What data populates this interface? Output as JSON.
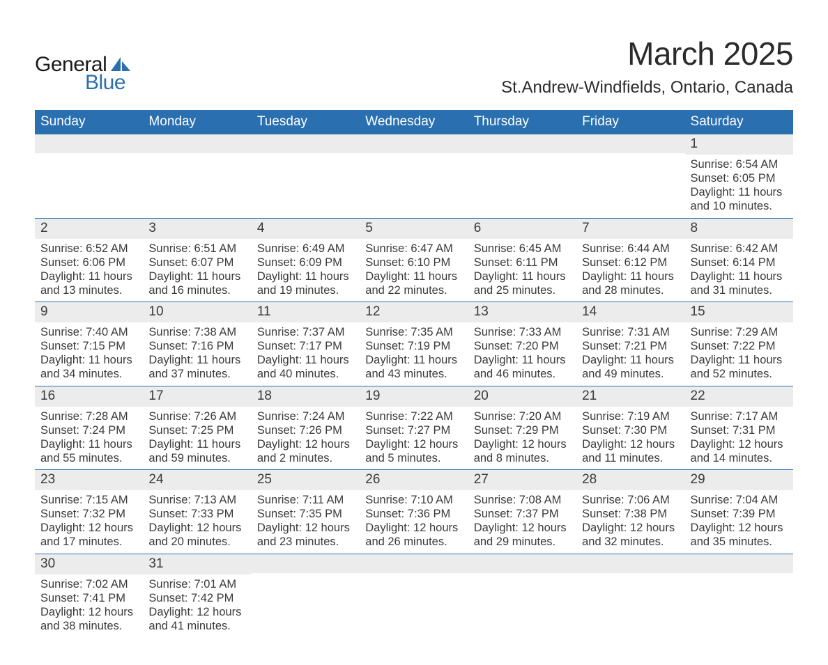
{
  "brand": {
    "text_general": "General",
    "text_blue": "Blue",
    "shape_color": "#2a6fb0"
  },
  "title": "March 2025",
  "location": "St.Andrew-Windfields, Ontario, Canada",
  "colors": {
    "header_bg": "#2a6fb0",
    "header_text": "#ffffff",
    "daynum_bg": "#ececec",
    "body_text": "#3a3a3a",
    "page_bg": "#ffffff",
    "row_divider": "#2a6fb0"
  },
  "typography": {
    "title_fontsize": 46,
    "location_fontsize": 24,
    "header_fontsize": 19,
    "daynum_fontsize": 19,
    "cell_fontsize": 16.5,
    "logo_fontsize": 30
  },
  "day_headers": [
    "Sunday",
    "Monday",
    "Tuesday",
    "Wednesday",
    "Thursday",
    "Friday",
    "Saturday"
  ],
  "field_labels": {
    "sunrise": "Sunrise:",
    "sunset": "Sunset:",
    "daylight": "Daylight:"
  },
  "weeks": [
    [
      null,
      null,
      null,
      null,
      null,
      null,
      {
        "n": "1",
        "sunrise": "6:54 AM",
        "sunset": "6:05 PM",
        "daylight_l1": "11 hours",
        "daylight_l2": "and 10 minutes."
      }
    ],
    [
      {
        "n": "2",
        "sunrise": "6:52 AM",
        "sunset": "6:06 PM",
        "daylight_l1": "11 hours",
        "daylight_l2": "and 13 minutes."
      },
      {
        "n": "3",
        "sunrise": "6:51 AM",
        "sunset": "6:07 PM",
        "daylight_l1": "11 hours",
        "daylight_l2": "and 16 minutes."
      },
      {
        "n": "4",
        "sunrise": "6:49 AM",
        "sunset": "6:09 PM",
        "daylight_l1": "11 hours",
        "daylight_l2": "and 19 minutes."
      },
      {
        "n": "5",
        "sunrise": "6:47 AM",
        "sunset": "6:10 PM",
        "daylight_l1": "11 hours",
        "daylight_l2": "and 22 minutes."
      },
      {
        "n": "6",
        "sunrise": "6:45 AM",
        "sunset": "6:11 PM",
        "daylight_l1": "11 hours",
        "daylight_l2": "and 25 minutes."
      },
      {
        "n": "7",
        "sunrise": "6:44 AM",
        "sunset": "6:12 PM",
        "daylight_l1": "11 hours",
        "daylight_l2": "and 28 minutes."
      },
      {
        "n": "8",
        "sunrise": "6:42 AM",
        "sunset": "6:14 PM",
        "daylight_l1": "11 hours",
        "daylight_l2": "and 31 minutes."
      }
    ],
    [
      {
        "n": "9",
        "sunrise": "7:40 AM",
        "sunset": "7:15 PM",
        "daylight_l1": "11 hours",
        "daylight_l2": "and 34 minutes."
      },
      {
        "n": "10",
        "sunrise": "7:38 AM",
        "sunset": "7:16 PM",
        "daylight_l1": "11 hours",
        "daylight_l2": "and 37 minutes."
      },
      {
        "n": "11",
        "sunrise": "7:37 AM",
        "sunset": "7:17 PM",
        "daylight_l1": "11 hours",
        "daylight_l2": "and 40 minutes."
      },
      {
        "n": "12",
        "sunrise": "7:35 AM",
        "sunset": "7:19 PM",
        "daylight_l1": "11 hours",
        "daylight_l2": "and 43 minutes."
      },
      {
        "n": "13",
        "sunrise": "7:33 AM",
        "sunset": "7:20 PM",
        "daylight_l1": "11 hours",
        "daylight_l2": "and 46 minutes."
      },
      {
        "n": "14",
        "sunrise": "7:31 AM",
        "sunset": "7:21 PM",
        "daylight_l1": "11 hours",
        "daylight_l2": "and 49 minutes."
      },
      {
        "n": "15",
        "sunrise": "7:29 AM",
        "sunset": "7:22 PM",
        "daylight_l1": "11 hours",
        "daylight_l2": "and 52 minutes."
      }
    ],
    [
      {
        "n": "16",
        "sunrise": "7:28 AM",
        "sunset": "7:24 PM",
        "daylight_l1": "11 hours",
        "daylight_l2": "and 55 minutes."
      },
      {
        "n": "17",
        "sunrise": "7:26 AM",
        "sunset": "7:25 PM",
        "daylight_l1": "11 hours",
        "daylight_l2": "and 59 minutes."
      },
      {
        "n": "18",
        "sunrise": "7:24 AM",
        "sunset": "7:26 PM",
        "daylight_l1": "12 hours",
        "daylight_l2": "and 2 minutes."
      },
      {
        "n": "19",
        "sunrise": "7:22 AM",
        "sunset": "7:27 PM",
        "daylight_l1": "12 hours",
        "daylight_l2": "and 5 minutes."
      },
      {
        "n": "20",
        "sunrise": "7:20 AM",
        "sunset": "7:29 PM",
        "daylight_l1": "12 hours",
        "daylight_l2": "and 8 minutes."
      },
      {
        "n": "21",
        "sunrise": "7:19 AM",
        "sunset": "7:30 PM",
        "daylight_l1": "12 hours",
        "daylight_l2": "and 11 minutes."
      },
      {
        "n": "22",
        "sunrise": "7:17 AM",
        "sunset": "7:31 PM",
        "daylight_l1": "12 hours",
        "daylight_l2": "and 14 minutes."
      }
    ],
    [
      {
        "n": "23",
        "sunrise": "7:15 AM",
        "sunset": "7:32 PM",
        "daylight_l1": "12 hours",
        "daylight_l2": "and 17 minutes."
      },
      {
        "n": "24",
        "sunrise": "7:13 AM",
        "sunset": "7:33 PM",
        "daylight_l1": "12 hours",
        "daylight_l2": "and 20 minutes."
      },
      {
        "n": "25",
        "sunrise": "7:11 AM",
        "sunset": "7:35 PM",
        "daylight_l1": "12 hours",
        "daylight_l2": "and 23 minutes."
      },
      {
        "n": "26",
        "sunrise": "7:10 AM",
        "sunset": "7:36 PM",
        "daylight_l1": "12 hours",
        "daylight_l2": "and 26 minutes."
      },
      {
        "n": "27",
        "sunrise": "7:08 AM",
        "sunset": "7:37 PM",
        "daylight_l1": "12 hours",
        "daylight_l2": "and 29 minutes."
      },
      {
        "n": "28",
        "sunrise": "7:06 AM",
        "sunset": "7:38 PM",
        "daylight_l1": "12 hours",
        "daylight_l2": "and 32 minutes."
      },
      {
        "n": "29",
        "sunrise": "7:04 AM",
        "sunset": "7:39 PM",
        "daylight_l1": "12 hours",
        "daylight_l2": "and 35 minutes."
      }
    ],
    [
      {
        "n": "30",
        "sunrise": "7:02 AM",
        "sunset": "7:41 PM",
        "daylight_l1": "12 hours",
        "daylight_l2": "and 38 minutes."
      },
      {
        "n": "31",
        "sunrise": "7:01 AM",
        "sunset": "7:42 PM",
        "daylight_l1": "12 hours",
        "daylight_l2": "and 41 minutes."
      },
      null,
      null,
      null,
      null,
      null
    ]
  ]
}
